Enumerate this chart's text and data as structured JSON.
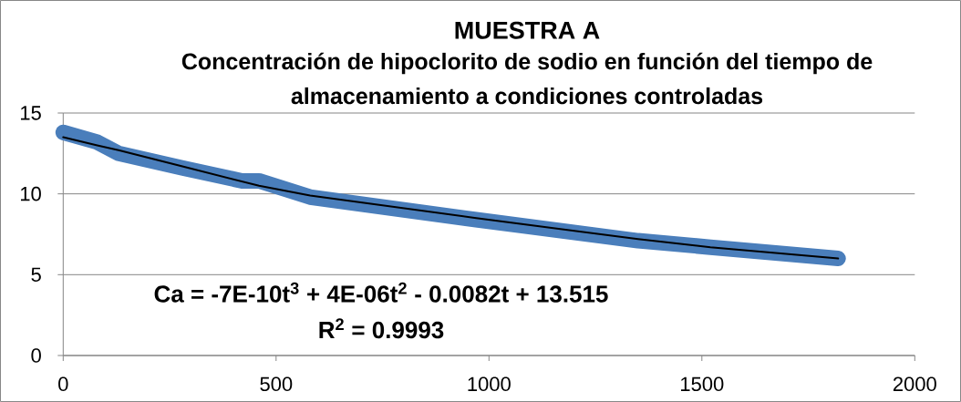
{
  "chart_data": {
    "type": "line",
    "title": "MUESTRA A",
    "subtitle": "Concentración de hipoclorito de sodio en función del tiempo de almacenamiento a condiciones controladas",
    "series": [
      {
        "color": "#4a7ebb",
        "x": [
          0,
          80,
          130,
          280,
          420,
          460,
          580,
          970,
          1350,
          1520,
          1820
        ],
        "values": [
          13.8,
          13.2,
          12.5,
          11.6,
          10.8,
          10.8,
          9.8,
          8.4,
          7.1,
          6.7,
          6.0
        ]
      },
      {
        "type": "line",
        "color": "#000000",
        "x": [
          0,
          80,
          130,
          280,
          460,
          580,
          970,
          1350,
          1520,
          1820
        ],
        "values": [
          13.5,
          13.0,
          12.7,
          11.7,
          10.5,
          9.9,
          8.5,
          7.2,
          6.7,
          6.0
        ]
      }
    ],
    "xlim": [
      0,
      2000
    ],
    "ylim": [
      0,
      15
    ],
    "xticks": [
      0,
      500,
      1000,
      1500,
      2000
    ],
    "yticks": [
      0,
      5,
      10,
      15
    ],
    "grid": "y",
    "marker": "none",
    "line_style": "solid",
    "annotations": [
      "Ca = -7E-10t$^{3}$ + 4E-06t$^{2}$ - 0.0082t + 13.515",
      "R$^{2}$ = 0.9993"
    ]
  }
}
